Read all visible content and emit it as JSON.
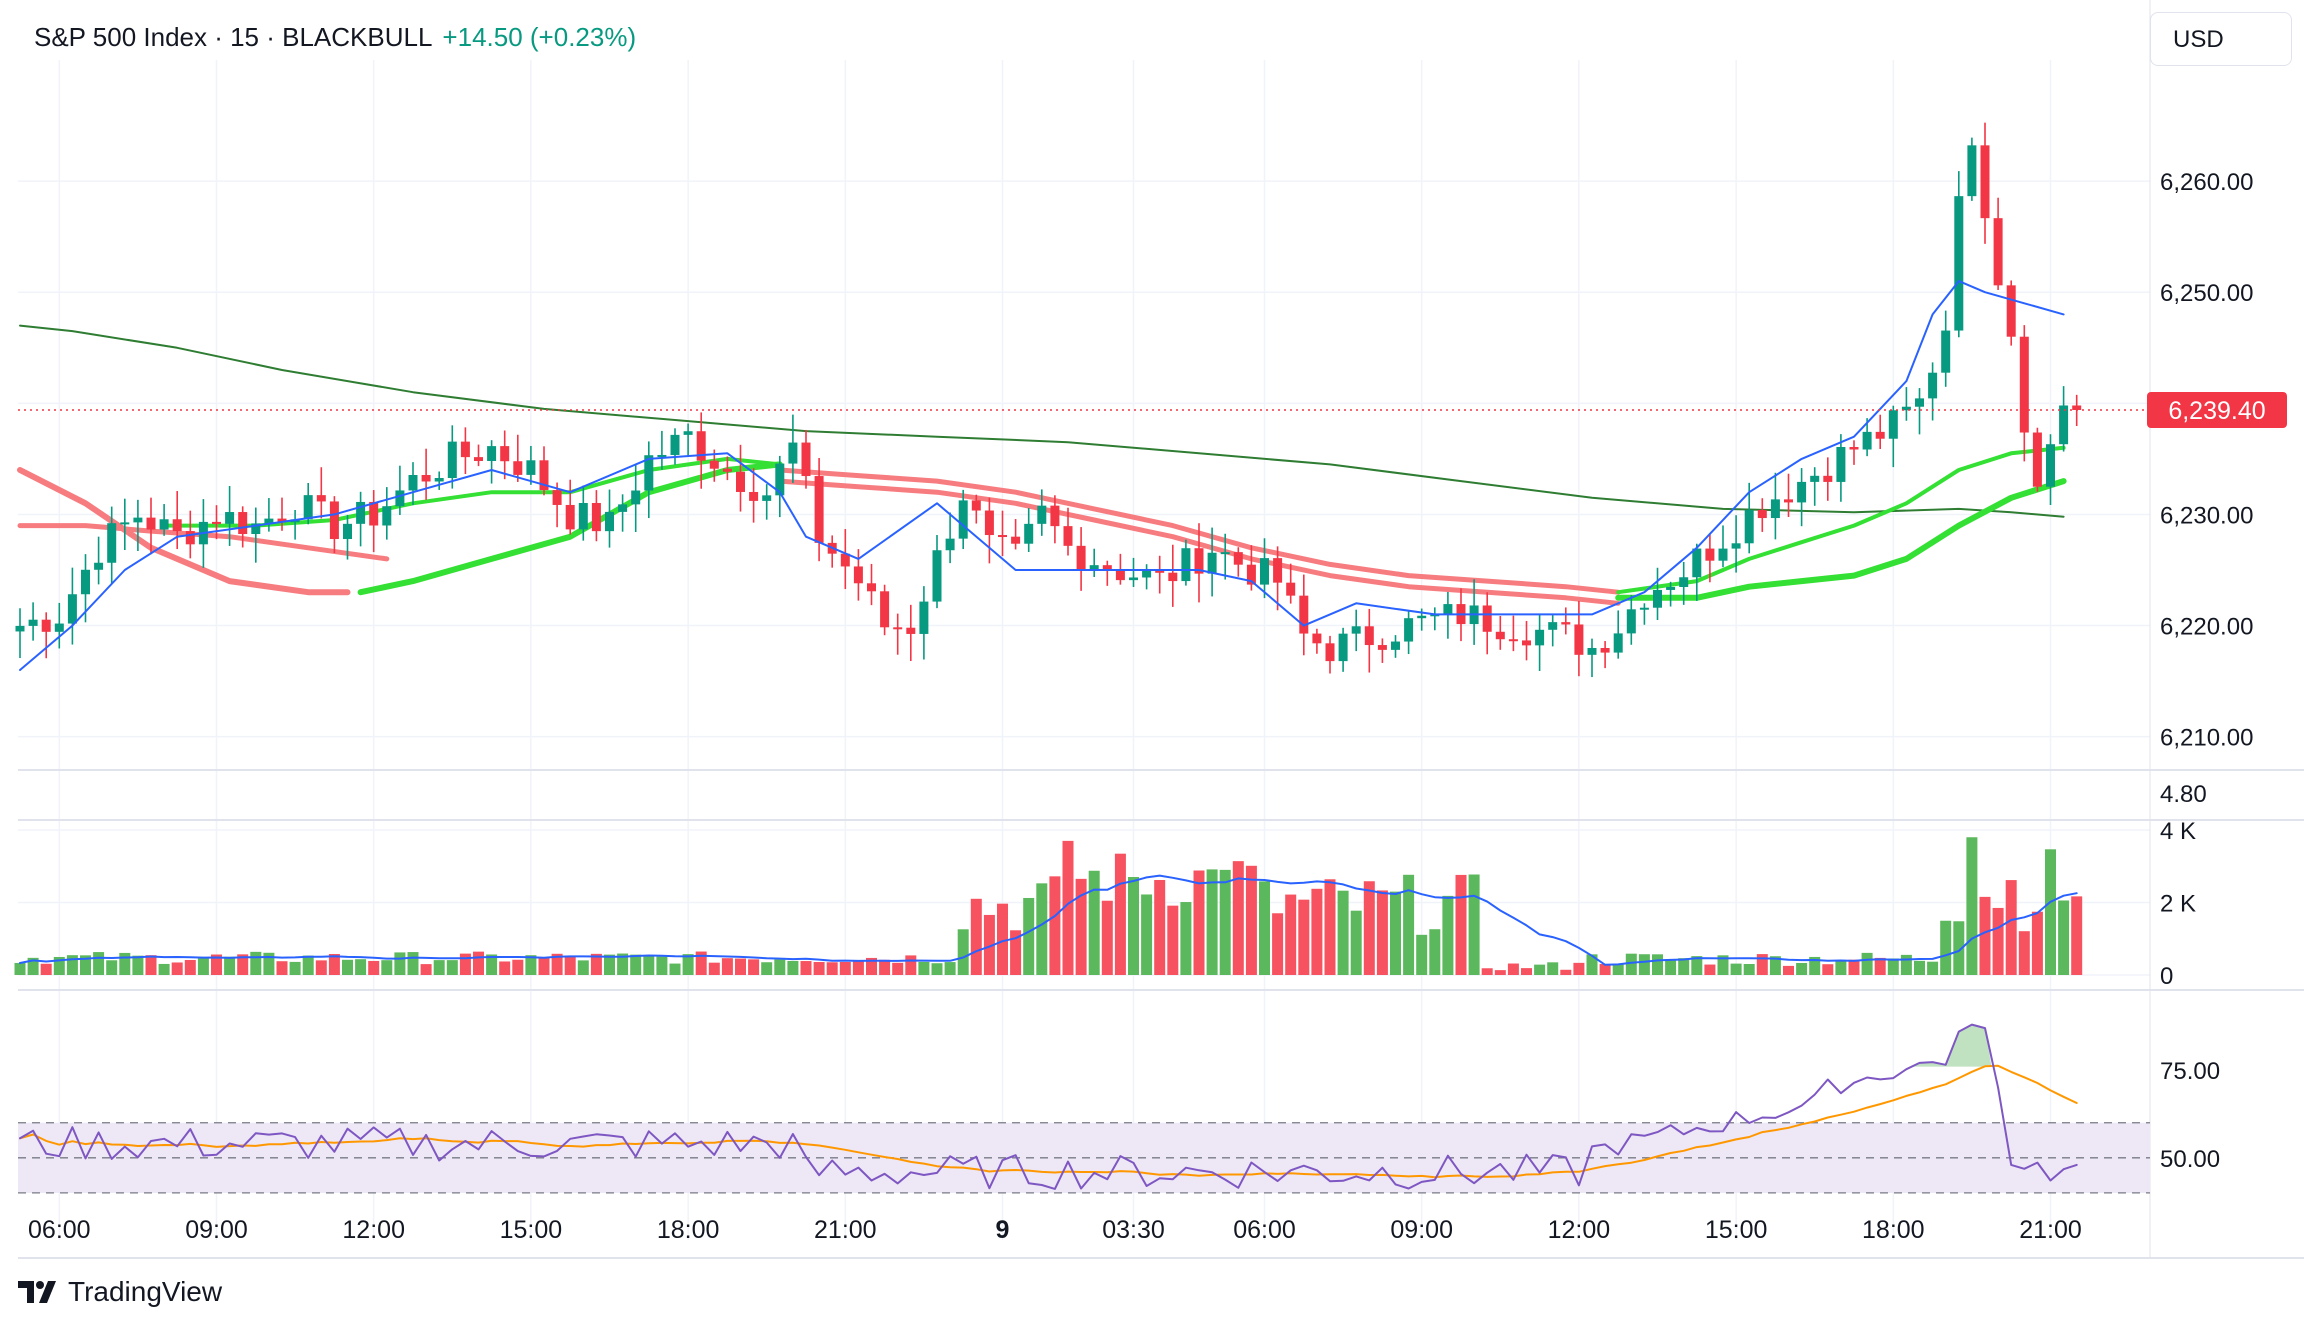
{
  "header": {
    "symbol": "S&P 500 Index · 15 · BLACKBULL",
    "change": "+14.50 (+0.23%)"
  },
  "currency_button": "USD",
  "brand": "TradingView",
  "colors": {
    "up": "#089981",
    "down": "#f23645",
    "vol_up": "#5cb85c",
    "vol_down": "#f7525f",
    "ma_fast": "#2962ff",
    "ma_slow": "#2e7d32",
    "ema_green": "#33e033",
    "ema_red": "#f77c80",
    "rsi_line": "#7e57c2",
    "rsi_ma": "#ff9800",
    "rsi_band": "#ede7f6",
    "price_tag": "#f23645",
    "grid": "#f0f3fa"
  },
  "chart_data": [
    {
      "type": "candlestick",
      "panel": "price",
      "ylim": [
        6207,
        6270
      ],
      "yticks": [
        "6,210.00",
        "6,220.00",
        "6,230.00",
        "6,250.00",
        "6,260.00"
      ],
      "ytick_values": [
        6210,
        6220,
        6230,
        6250,
        6260
      ],
      "last_price": 6239.4,
      "last_price_label": "6,239.40",
      "x_labels": [
        {
          "i": 3,
          "label": "06:00"
        },
        {
          "i": 15,
          "label": "09:00"
        },
        {
          "i": 27,
          "label": "12:00"
        },
        {
          "i": 39,
          "label": "15:00"
        },
        {
          "i": 51,
          "label": "18:00"
        },
        {
          "i": 63,
          "label": "21:00"
        },
        {
          "i": 75,
          "label": "9",
          "bold": true
        },
        {
          "i": 85,
          "label": "03:30"
        },
        {
          "i": 95,
          "label": "06:00"
        },
        {
          "i": 107,
          "label": "09:00"
        },
        {
          "i": 119,
          "label": "12:00"
        },
        {
          "i": 131,
          "label": "15:00"
        },
        {
          "i": 143,
          "label": "18:00"
        },
        {
          "i": 155,
          "label": "21:00"
        }
      ],
      "overlay_lines": {
        "ma_fast": [
          [
            0,
            6216
          ],
          [
            4,
            6220
          ],
          [
            8,
            6225
          ],
          [
            12,
            6228
          ],
          [
            18,
            6229
          ],
          [
            24,
            6230
          ],
          [
            30,
            6232
          ],
          [
            36,
            6234
          ],
          [
            42,
            6232
          ],
          [
            48,
            6235
          ],
          [
            54,
            6235.5
          ],
          [
            58,
            6232
          ],
          [
            60,
            6228
          ],
          [
            64,
            6226
          ],
          [
            70,
            6231
          ],
          [
            76,
            6225
          ],
          [
            80,
            6225
          ],
          [
            85,
            6225
          ],
          [
            90,
            6225
          ],
          [
            94,
            6224
          ],
          [
            98,
            6220
          ],
          [
            102,
            6222
          ],
          [
            108,
            6221
          ],
          [
            114,
            6221
          ],
          [
            120,
            6221
          ],
          [
            124,
            6223
          ],
          [
            128,
            6227
          ],
          [
            132,
            6232
          ],
          [
            136,
            6235
          ],
          [
            140,
            6237
          ],
          [
            144,
            6242
          ],
          [
            146,
            6248
          ],
          [
            148,
            6251
          ],
          [
            150,
            6250
          ],
          [
            153,
            6249
          ],
          [
            156,
            6248
          ]
        ],
        "ma_slow": [
          [
            0,
            6247
          ],
          [
            4,
            6246.5
          ],
          [
            12,
            6245
          ],
          [
            20,
            6243
          ],
          [
            30,
            6241
          ],
          [
            40,
            6239.5
          ],
          [
            50,
            6238.5
          ],
          [
            60,
            6237.5
          ],
          [
            70,
            6237
          ],
          [
            80,
            6236.5
          ],
          [
            90,
            6235.5
          ],
          [
            100,
            6234.5
          ],
          [
            110,
            6233
          ],
          [
            120,
            6231.5
          ],
          [
            130,
            6230.5
          ],
          [
            140,
            6230.2
          ],
          [
            148,
            6230.5
          ],
          [
            152,
            6230.2
          ],
          [
            156,
            6229.8
          ]
        ],
        "ema_green_a": [
          [
            11,
            6229
          ],
          [
            18,
            6229
          ],
          [
            24,
            6229.5
          ],
          [
            30,
            6231
          ],
          [
            36,
            6232
          ],
          [
            42,
            6232
          ],
          [
            48,
            6234
          ],
          [
            54,
            6235
          ],
          [
            58,
            6234.5
          ]
        ],
        "ema_green_b": [
          [
            26,
            6223
          ],
          [
            30,
            6224
          ],
          [
            36,
            6226
          ],
          [
            42,
            6228
          ],
          [
            48,
            6232
          ],
          [
            54,
            6234
          ],
          [
            58,
            6234.5
          ]
        ],
        "ema_red_a": [
          [
            0,
            6229
          ],
          [
            5,
            6229
          ],
          [
            10,
            6228.5
          ],
          [
            16,
            6228
          ],
          [
            22,
            6227
          ],
          [
            28,
            6226
          ]
        ],
        "ema_red_b": [
          [
            0,
            6234
          ],
          [
            5,
            6231
          ],
          [
            10,
            6227
          ],
          [
            16,
            6224
          ],
          [
            22,
            6223
          ],
          [
            25,
            6223
          ]
        ],
        "ema_red_c": [
          [
            58,
            6234
          ],
          [
            64,
            6233.5
          ],
          [
            70,
            6233
          ],
          [
            76,
            6232
          ],
          [
            82,
            6230.5
          ],
          [
            88,
            6229
          ],
          [
            94,
            6227
          ],
          [
            100,
            6225.5
          ],
          [
            106,
            6224.5
          ],
          [
            112,
            6224
          ],
          [
            118,
            6223.5
          ],
          [
            122,
            6223
          ]
        ],
        "ema_red_d": [
          [
            58,
            6233
          ],
          [
            64,
            6232.5
          ],
          [
            70,
            6232
          ],
          [
            76,
            6231
          ],
          [
            82,
            6229.5
          ],
          [
            88,
            6228
          ],
          [
            94,
            6226
          ],
          [
            100,
            6224.5
          ],
          [
            106,
            6223.5
          ],
          [
            112,
            6223
          ],
          [
            118,
            6222.5
          ],
          [
            122,
            6222
          ]
        ],
        "ema_green_c": [
          [
            122,
            6223
          ],
          [
            128,
            6224
          ],
          [
            132,
            6226
          ],
          [
            136,
            6227.5
          ],
          [
            140,
            6229
          ],
          [
            144,
            6231
          ],
          [
            148,
            6234
          ],
          [
            152,
            6235.5
          ],
          [
            156,
            6236
          ]
        ],
        "ema_green_d": [
          [
            122,
            6222.5
          ],
          [
            128,
            6222.5
          ],
          [
            132,
            6223.5
          ],
          [
            136,
            6224
          ],
          [
            140,
            6224.5
          ],
          [
            144,
            6226
          ],
          [
            148,
            6229
          ],
          [
            152,
            6231.5
          ],
          [
            156,
            6233
          ]
        ]
      }
    },
    {
      "type": "bar",
      "panel": "volume",
      "ylim": [
        0,
        4000
      ],
      "yticks": [
        "0",
        "2 K",
        "4 K"
      ],
      "ytick_values": [
        0,
        2000,
        4000
      ],
      "top_label": "4.80"
    },
    {
      "type": "line",
      "panel": "rsi",
      "yticks": [
        "50.00",
        "75.00"
      ],
      "ytick_values": [
        50,
        75
      ],
      "band": [
        40,
        60
      ],
      "midline": 50,
      "ylim": [
        28,
        95
      ]
    }
  ]
}
